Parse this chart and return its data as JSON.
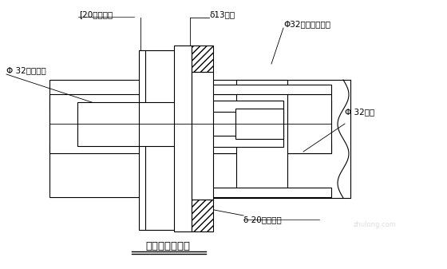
{
  "title": "拉杆位置大样图",
  "bg_color": "#ffffff",
  "line_color": "#000000",
  "labels": {
    "channel_steel": "[20加强槽钢",
    "formwork": "δ13模面",
    "nut_long": "Φ32螺母（加长）",
    "rough_nut": "Φ 32粗制螺母",
    "tie_rod": "Φ 32拉杆",
    "steel_plate": "δ 20加强钢板"
  },
  "font_size": 7.5,
  "title_font_size": 9.5
}
